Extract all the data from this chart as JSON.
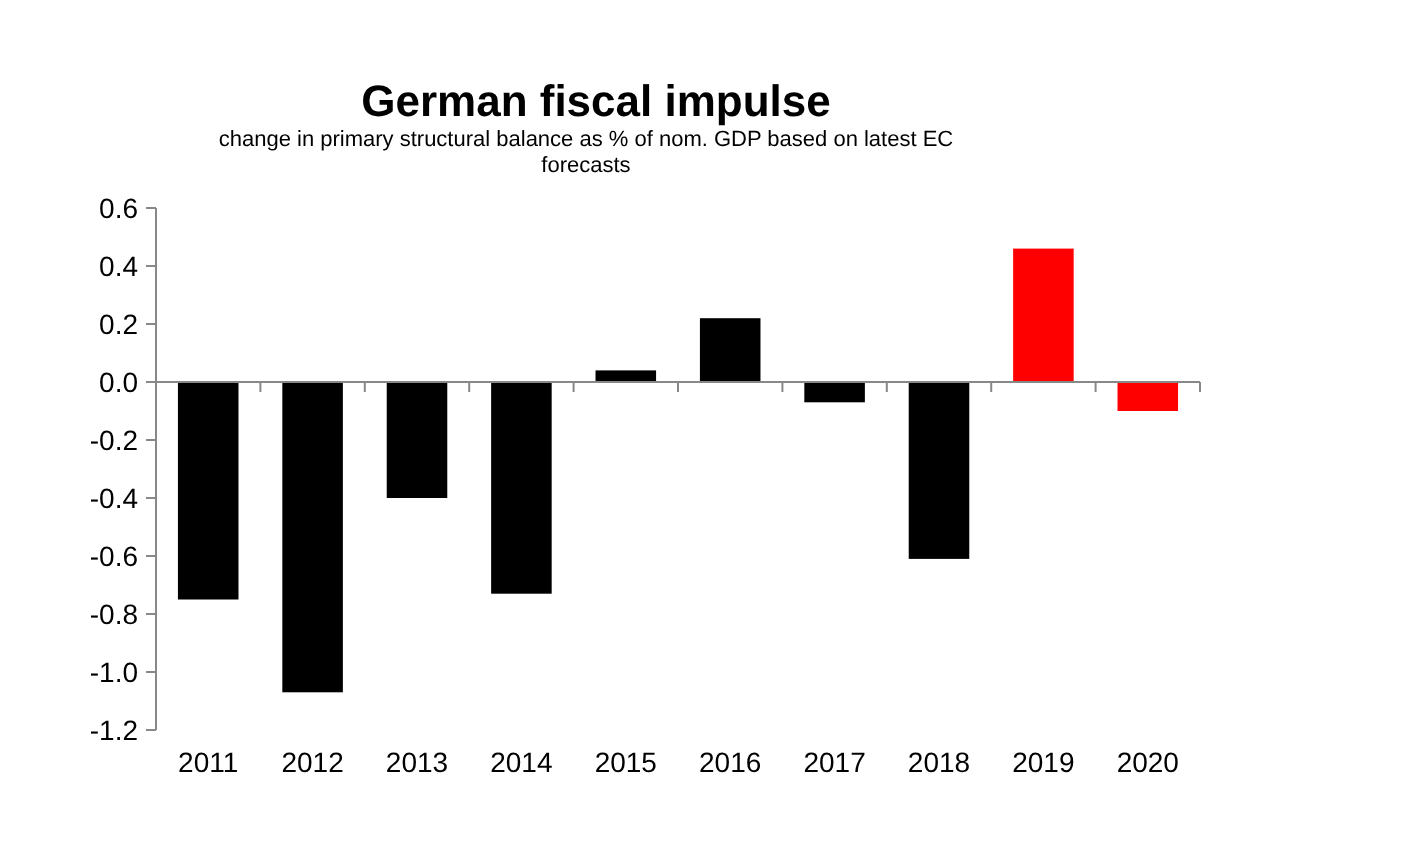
{
  "chart_data": {
    "type": "bar",
    "title": "German fiscal impulse",
    "subtitle": "change in primary structural balance as % of nom. GDP based on latest EC forecasts",
    "categories": [
      "2011",
      "2012",
      "2013",
      "2014",
      "2015",
      "2016",
      "2017",
      "2018",
      "2019",
      "2020"
    ],
    "values": [
      -0.75,
      -1.07,
      -0.4,
      -0.73,
      0.04,
      0.22,
      -0.07,
      -0.61,
      0.46,
      -0.1
    ],
    "colors": [
      "#000000",
      "#000000",
      "#000000",
      "#000000",
      "#000000",
      "#000000",
      "#000000",
      "#000000",
      "#ff0000",
      "#ff0000"
    ],
    "ylim": [
      -1.2,
      0.6
    ],
    "yticks": [
      {
        "value": -1.2,
        "label": "-1.2"
      },
      {
        "value": -1,
        "label": "-1.0"
      },
      {
        "value": -0.8,
        "label": "-0.8"
      },
      {
        "value": -0.6,
        "label": "-0.6"
      },
      {
        "value": -0.4,
        "label": "-0.4"
      },
      {
        "value": -0.2,
        "label": "-0.2"
      },
      {
        "value": 0,
        "label": "0.0"
      },
      {
        "value": 0.2,
        "label": "0.2"
      },
      {
        "value": 0.4,
        "label": "0.4"
      },
      {
        "value": 0.6,
        "label": "0.6"
      }
    ]
  }
}
